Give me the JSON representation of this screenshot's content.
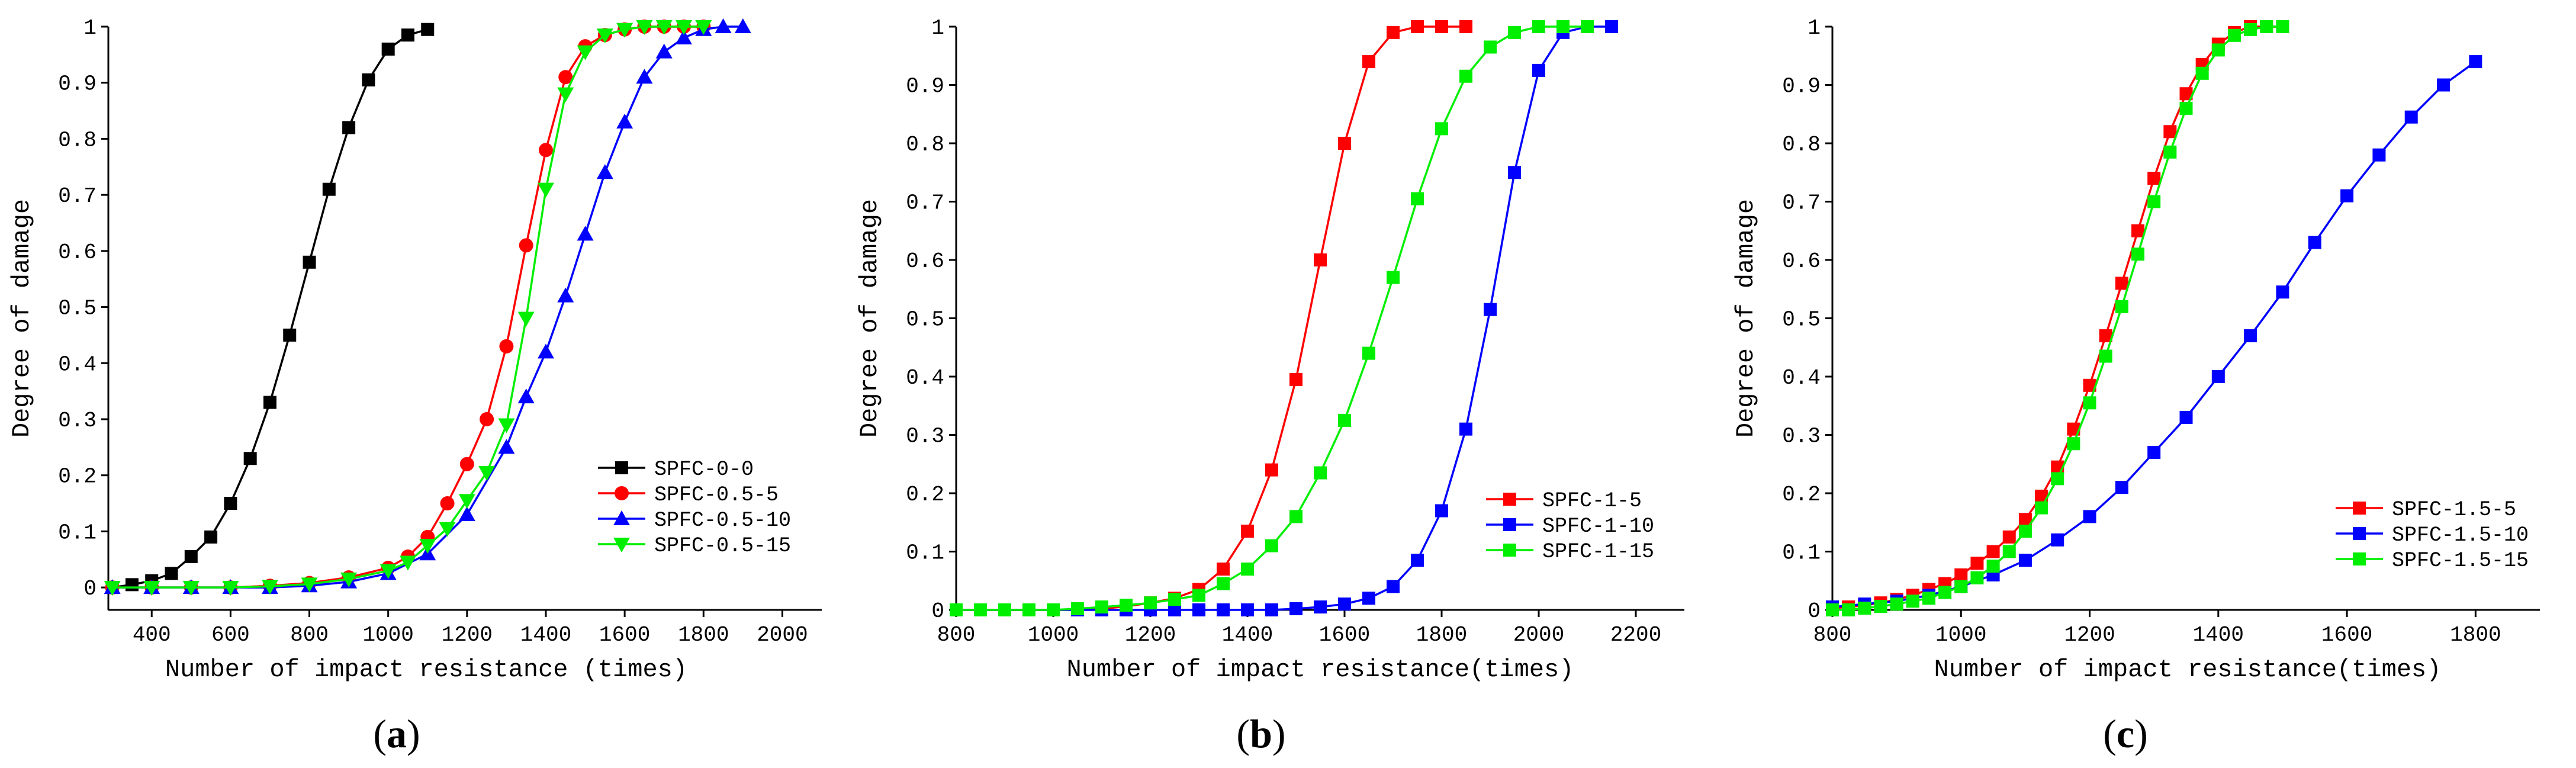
{
  "chart_data": [
    {
      "type": "line",
      "panel_label": {
        "open": "(",
        "letter": "a",
        "close": ")"
      },
      "xlabel": "Number of impact resistance (times)",
      "ylabel": "Degree of damage",
      "xlim": [
        290,
        2100
      ],
      "ylim": [
        -0.04,
        1.0
      ],
      "xticks": [
        400,
        600,
        800,
        1000,
        1200,
        1400,
        1600,
        1800,
        2000
      ],
      "yticks": [
        0.0,
        0.1,
        0.2,
        0.3,
        0.4,
        0.5,
        0.6,
        0.7,
        0.8,
        0.9,
        1.0
      ],
      "legend_position": "lower-right",
      "series": [
        {
          "name": "SPFC-0-0",
          "color": "#000000",
          "marker": "square",
          "x": [
            300,
            350,
            400,
            450,
            500,
            550,
            600,
            650,
            700,
            750,
            800,
            850,
            900,
            950,
            1000,
            1050,
            1100
          ],
          "y": [
            0.0,
            0.005,
            0.012,
            0.025,
            0.055,
            0.09,
            0.15,
            0.23,
            0.33,
            0.45,
            0.58,
            0.71,
            0.82,
            0.905,
            0.96,
            0.985,
            0.995
          ]
        },
        {
          "name": "SPFC-0.5-5",
          "color": "#ff0000",
          "marker": "circle",
          "x": [
            300,
            400,
            500,
            600,
            700,
            800,
            900,
            1000,
            1050,
            1100,
            1150,
            1200,
            1250,
            1300,
            1350,
            1400,
            1450,
            1500,
            1550,
            1600,
            1650,
            1700,
            1750,
            1800
          ],
          "y": [
            0.0,
            0.0,
            0.0,
            0.0,
            0.003,
            0.008,
            0.018,
            0.035,
            0.055,
            0.09,
            0.15,
            0.22,
            0.3,
            0.43,
            0.61,
            0.78,
            0.91,
            0.965,
            0.985,
            0.995,
            1.0,
            1.0,
            1.0,
            1.0
          ]
        },
        {
          "name": "SPFC-0.5-10",
          "color": "#0000ff",
          "marker": "triangle-up",
          "x": [
            300,
            400,
            500,
            600,
            700,
            800,
            900,
            1000,
            1100,
            1200,
            1300,
            1350,
            1400,
            1450,
            1500,
            1550,
            1600,
            1650,
            1700,
            1750,
            1800,
            1850,
            1900
          ],
          "y": [
            0.0,
            0.0,
            0.0,
            0.0,
            0.0,
            0.003,
            0.01,
            0.025,
            0.06,
            0.13,
            0.25,
            0.34,
            0.42,
            0.52,
            0.63,
            0.74,
            0.83,
            0.91,
            0.955,
            0.98,
            0.995,
            1.0,
            1.0
          ]
        },
        {
          "name": "SPFC-0.5-15",
          "color": "#00ee00",
          "marker": "triangle-down",
          "x": [
            300,
            400,
            500,
            600,
            700,
            800,
            900,
            1000,
            1050,
            1100,
            1150,
            1200,
            1250,
            1300,
            1350,
            1400,
            1450,
            1500,
            1550,
            1600,
            1650,
            1700,
            1750,
            1800
          ],
          "y": [
            0.0,
            0.0,
            0.0,
            0.0,
            0.002,
            0.006,
            0.015,
            0.03,
            0.045,
            0.075,
            0.105,
            0.155,
            0.205,
            0.29,
            0.48,
            0.71,
            0.88,
            0.955,
            0.985,
            0.995,
            1.0,
            1.0,
            1.0,
            1.0
          ]
        }
      ]
    },
    {
      "type": "line",
      "panel_label": {
        "open": "(",
        "letter": "b",
        "close": ")"
      },
      "xlabel": "Number of impact resistance(times)",
      "ylabel": "Degree of damage",
      "xlim": [
        800,
        2300
      ],
      "ylim": [
        0.0,
        1.0
      ],
      "xticks": [
        800,
        1000,
        1200,
        1400,
        1600,
        1800,
        2000,
        2200
      ],
      "yticks": [
        0.0,
        0.1,
        0.2,
        0.3,
        0.4,
        0.5,
        0.6,
        0.7,
        0.8,
        0.9,
        1.0
      ],
      "legend_position": "lower-right",
      "series": [
        {
          "name": "SPFC-1-5",
          "color": "#ff0000",
          "marker": "square",
          "x": [
            800,
            850,
            900,
            950,
            1000,
            1050,
            1100,
            1150,
            1200,
            1250,
            1300,
            1350,
            1400,
            1450,
            1500,
            1550,
            1600,
            1650,
            1700,
            1750,
            1800,
            1850
          ],
          "y": [
            0.0,
            0.0,
            0.0,
            0.0,
            0.0,
            0.0,
            0.002,
            0.006,
            0.012,
            0.02,
            0.035,
            0.07,
            0.135,
            0.24,
            0.395,
            0.6,
            0.8,
            0.94,
            0.99,
            1.0,
            1.0,
            1.0
          ]
        },
        {
          "name": "SPFC-1-10",
          "color": "#0000ff",
          "marker": "square",
          "x": [
            800,
            850,
            900,
            950,
            1000,
            1050,
            1100,
            1150,
            1200,
            1250,
            1300,
            1350,
            1400,
            1450,
            1500,
            1550,
            1600,
            1650,
            1700,
            1750,
            1800,
            1850,
            1900,
            1950,
            2000,
            2050,
            2100,
            2150
          ],
          "y": [
            0.0,
            0.0,
            0.0,
            0.0,
            0.0,
            0.0,
            0.0,
            0.0,
            0.0,
            0.0,
            0.0,
            0.0,
            0.0,
            0.0,
            0.002,
            0.005,
            0.01,
            0.02,
            0.04,
            0.085,
            0.17,
            0.31,
            0.515,
            0.75,
            0.925,
            0.99,
            1.0,
            1.0
          ]
        },
        {
          "name": "SPFC-1-15",
          "color": "#00ee00",
          "marker": "square",
          "x": [
            800,
            850,
            900,
            950,
            1000,
            1050,
            1100,
            1150,
            1200,
            1250,
            1300,
            1350,
            1400,
            1450,
            1500,
            1550,
            1600,
            1650,
            1700,
            1750,
            1800,
            1850,
            1900,
            1950,
            2000,
            2050,
            2100
          ],
          "y": [
            0.0,
            0.0,
            0.0,
            0.0,
            0.0,
            0.002,
            0.005,
            0.008,
            0.012,
            0.018,
            0.025,
            0.045,
            0.07,
            0.11,
            0.16,
            0.235,
            0.325,
            0.44,
            0.57,
            0.705,
            0.825,
            0.915,
            0.965,
            0.99,
            1.0,
            1.0,
            1.0
          ]
        }
      ]
    },
    {
      "type": "line",
      "panel_label": {
        "open": "(",
        "letter": "c",
        "close": ")"
      },
      "xlabel": "Number of impact resistance(times)",
      "ylabel": "Degree of damage",
      "xlim": [
        800,
        1900
      ],
      "ylim": [
        0.0,
        1.0
      ],
      "xticks": [
        800,
        1000,
        1200,
        1400,
        1600,
        1800
      ],
      "yticks": [
        0.0,
        0.1,
        0.2,
        0.3,
        0.4,
        0.5,
        0.6,
        0.7,
        0.8,
        0.9,
        1.0
      ],
      "legend_position": "lower-right",
      "series": [
        {
          "name": "SPFC-1.5-5",
          "color": "#ff0000",
          "marker": "square",
          "x": [
            800,
            825,
            850,
            875,
            900,
            925,
            950,
            975,
            1000,
            1025,
            1050,
            1075,
            1100,
            1125,
            1150,
            1175,
            1200,
            1225,
            1250,
            1275,
            1300,
            1325,
            1350,
            1375,
            1400,
            1425,
            1450,
            1475,
            1500
          ],
          "y": [
            0.003,
            0.005,
            0.008,
            0.012,
            0.018,
            0.025,
            0.035,
            0.045,
            0.06,
            0.08,
            0.1,
            0.125,
            0.155,
            0.195,
            0.245,
            0.31,
            0.385,
            0.47,
            0.56,
            0.65,
            0.74,
            0.82,
            0.885,
            0.935,
            0.97,
            0.99,
            1.0,
            1.0,
            1.0
          ]
        },
        {
          "name": "SPFC-1.5-10",
          "color": "#0000ff",
          "marker": "square",
          "x": [
            800,
            850,
            900,
            950,
            1000,
            1050,
            1100,
            1150,
            1200,
            1250,
            1300,
            1350,
            1400,
            1450,
            1500,
            1550,
            1600,
            1650,
            1700,
            1750,
            1800
          ],
          "y": [
            0.005,
            0.01,
            0.015,
            0.025,
            0.04,
            0.06,
            0.085,
            0.12,
            0.16,
            0.21,
            0.27,
            0.33,
            0.4,
            0.47,
            0.545,
            0.63,
            0.71,
            0.78,
            0.845,
            0.9,
            0.94
          ]
        },
        {
          "name": "SPFC-1.5-15",
          "color": "#00ee00",
          "marker": "square",
          "x": [
            800,
            825,
            850,
            875,
            900,
            925,
            950,
            975,
            1000,
            1025,
            1050,
            1075,
            1100,
            1125,
            1150,
            1175,
            1200,
            1225,
            1250,
            1275,
            1300,
            1325,
            1350,
            1375,
            1400,
            1425,
            1450,
            1475,
            1500
          ],
          "y": [
            0.0,
            0.0,
            0.003,
            0.006,
            0.01,
            0.015,
            0.02,
            0.03,
            0.04,
            0.055,
            0.075,
            0.1,
            0.135,
            0.175,
            0.225,
            0.285,
            0.355,
            0.435,
            0.52,
            0.61,
            0.7,
            0.785,
            0.86,
            0.92,
            0.96,
            0.985,
            0.995,
            1.0,
            1.0
          ]
        }
      ]
    }
  ]
}
